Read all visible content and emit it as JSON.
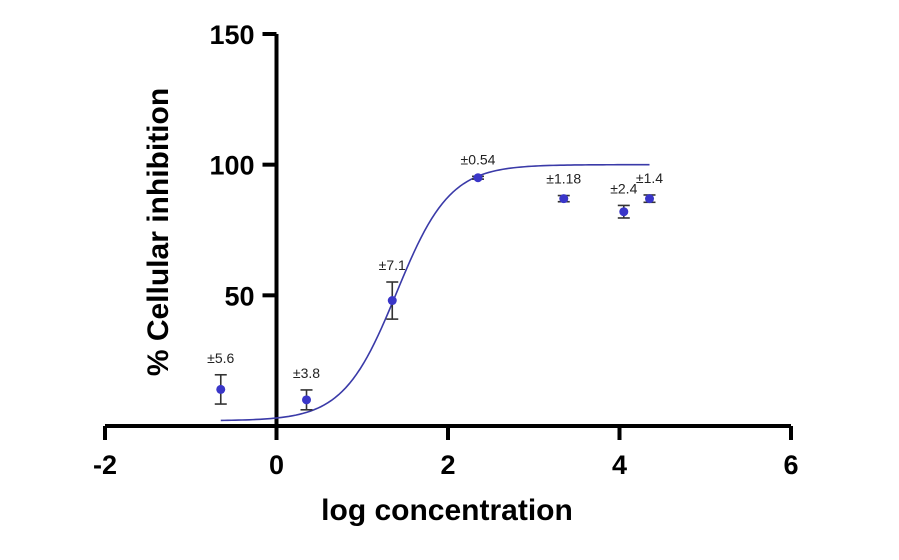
{
  "chart_data": {
    "type": "scatter",
    "xlabel": "log concentration",
    "ylabel": "% Cellular inhibition",
    "xlim": [
      -2,
      6
    ],
    "ylim": [
      0,
      150
    ],
    "x_ticks": [
      -2,
      0,
      2,
      4,
      6
    ],
    "y_ticks": [
      50,
      100,
      150
    ],
    "grid": false,
    "colors": {
      "points": "#3a36c8",
      "curve": "#3a3aa8",
      "error_bars": "#333333",
      "axes": "#000000"
    },
    "points": [
      {
        "x": -0.65,
        "y": 14,
        "err": 5.6,
        "err_label": "±5.6"
      },
      {
        "x": 0.35,
        "y": 10,
        "err": 3.8,
        "err_label": "±3.8"
      },
      {
        "x": 1.35,
        "y": 48,
        "err": 7.1,
        "err_label": "±7.1"
      },
      {
        "x": 2.35,
        "y": 95,
        "err": 0.54,
        "err_label": "±0.54"
      },
      {
        "x": 3.35,
        "y": 87,
        "err": 1.18,
        "err_label": "±1.18"
      },
      {
        "x": 4.05,
        "y": 82,
        "err": 2.4,
        "err_label": "±2.4"
      },
      {
        "x": 4.35,
        "y": 87,
        "err": 1.4,
        "err_label": "±1.4"
      }
    ],
    "fit_curve": {
      "type": "sigmoid",
      "bottom": 2,
      "top": 100,
      "log_ec50": 1.4,
      "hill_slope": 1.4,
      "x_range": [
        -0.65,
        4.35
      ]
    }
  }
}
